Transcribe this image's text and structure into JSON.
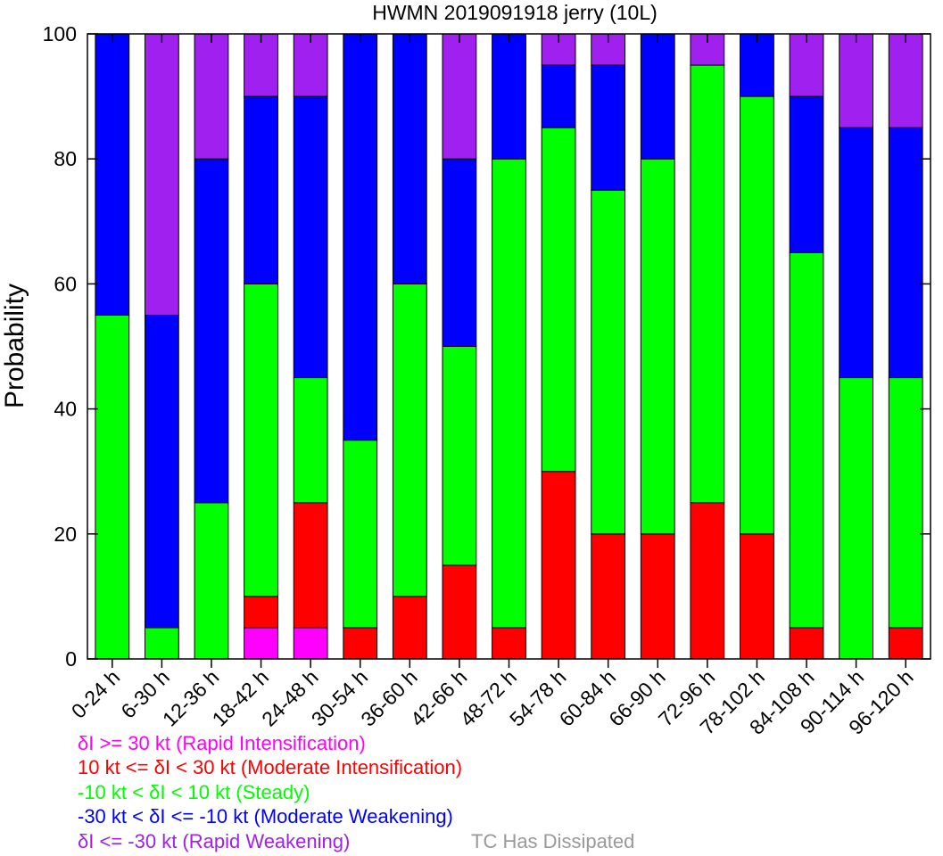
{
  "chart_data": {
    "type": "bar",
    "stacked": true,
    "title": "HWMN 2019091918 jerry (10L)",
    "ylabel": "Probability",
    "xlabel": "",
    "ylim": [
      0,
      100
    ],
    "yticks": [
      "0",
      "20",
      "40",
      "60",
      "80",
      "100"
    ],
    "categories": [
      "0-24 h",
      "6-30 h",
      "12-36 h",
      "18-42 h",
      "24-48 h",
      "30-54 h",
      "36-60 h",
      "42-66 h",
      "48-72 h",
      "54-78 h",
      "60-84 h",
      "66-90 h",
      "72-96 h",
      "78-102 h",
      "84-108 h",
      "90-114 h",
      "96-120 h"
    ],
    "series": [
      {
        "color": "#ff00ff",
        "values": [
          0,
          0,
          0,
          5,
          5,
          0,
          0,
          0,
          0,
          0,
          0,
          0,
          0,
          0,
          0,
          0,
          0
        ]
      },
      {
        "color": "#ff0000",
        "values": [
          0,
          0,
          0,
          5,
          20,
          5,
          10,
          15,
          5,
          30,
          20,
          20,
          25,
          20,
          5,
          0,
          5
        ]
      },
      {
        "color": "#00ff00",
        "values": [
          55,
          5,
          25,
          50,
          20,
          30,
          50,
          35,
          75,
          55,
          55,
          60,
          70,
          70,
          60,
          45,
          40
        ]
      },
      {
        "color": "#0000ff",
        "values": [
          45,
          50,
          55,
          30,
          45,
          65,
          40,
          30,
          20,
          10,
          20,
          20,
          0,
          10,
          25,
          40,
          40
        ]
      },
      {
        "color": "#a020f0",
        "values": [
          0,
          45,
          20,
          10,
          10,
          0,
          0,
          20,
          0,
          5,
          5,
          0,
          5,
          0,
          10,
          15,
          15
        ]
      }
    ],
    "legend": [
      {
        "label": "δI >= 30 kt (Rapid Intensification)",
        "color": "#ff00ff"
      },
      {
        "label": "10 kt <= δI < 30 kt (Moderate Intensification)",
        "color": "#ff0000"
      },
      {
        "label": "-10 kt < δI < 10 kt (Steady)",
        "color": "#00ff00"
      },
      {
        "label": "-30 kt < δI <= -10 kt (Moderate Weakening)",
        "color": "#0000ff"
      },
      {
        "label": "δI <= -30 kt (Rapid Weakening)",
        "color": "#a020f0"
      }
    ],
    "note": {
      "label": "TC Has Dissipated",
      "color": "#999999"
    },
    "legend_position": "bottom-left",
    "grid": false
  }
}
